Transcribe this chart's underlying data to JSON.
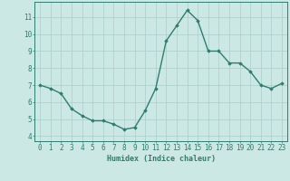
{
  "x": [
    0,
    1,
    2,
    3,
    4,
    5,
    6,
    7,
    8,
    9,
    10,
    11,
    12,
    13,
    14,
    15,
    16,
    17,
    18,
    19,
    20,
    21,
    22,
    23
  ],
  "y": [
    7.0,
    6.8,
    6.5,
    5.6,
    5.2,
    4.9,
    4.9,
    4.7,
    4.4,
    4.5,
    5.5,
    6.8,
    9.6,
    10.5,
    11.4,
    10.8,
    9.0,
    9.0,
    8.3,
    8.3,
    7.8,
    7.0,
    6.8,
    7.1
  ],
  "line_color": "#2e7d6e",
  "marker": "D",
  "marker_size": 1.8,
  "linewidth": 1.0,
  "bg_color": "#cce8e4",
  "grid_color": "#aacfcc",
  "axis_color": "#2e7d6e",
  "xlabel": "Humidex (Indice chaleur)",
  "xlabel_fontsize": 6.0,
  "ylabel_ticks": [
    4,
    5,
    6,
    7,
    8,
    9,
    10,
    11
  ],
  "ylim": [
    3.7,
    11.9
  ],
  "xlim": [
    -0.5,
    23.5
  ],
  "xtick_labels": [
    "0",
    "1",
    "2",
    "3",
    "4",
    "5",
    "6",
    "7",
    "8",
    "9",
    "10",
    "11",
    "12",
    "13",
    "14",
    "15",
    "16",
    "17",
    "18",
    "19",
    "20",
    "21",
    "22",
    "23"
  ],
  "tick_fontsize": 5.5
}
